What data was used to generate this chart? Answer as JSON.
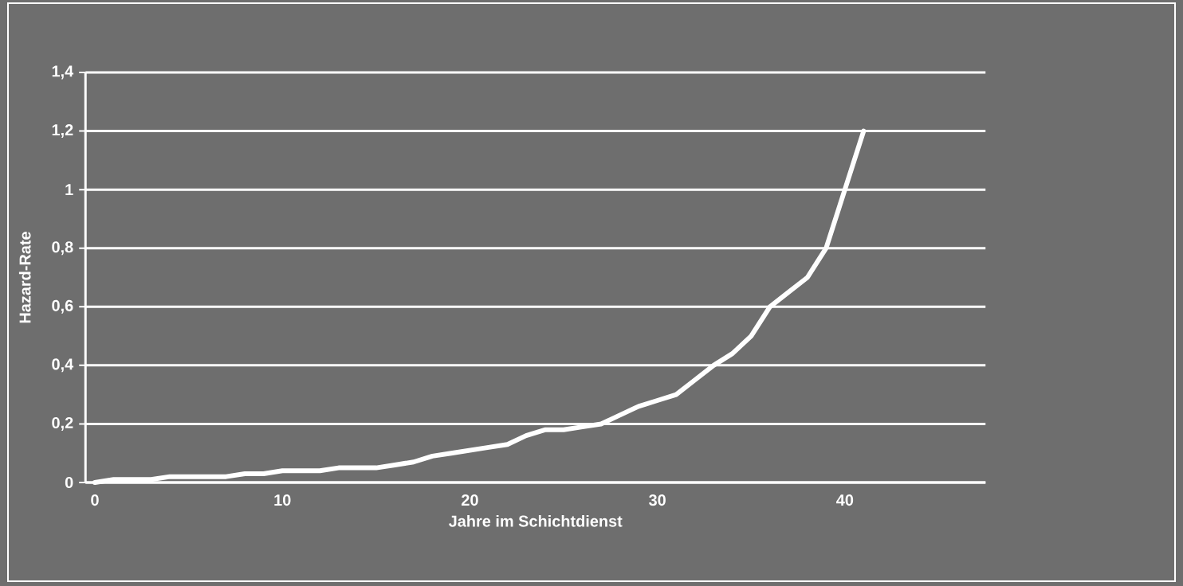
{
  "chart_data": {
    "type": "line",
    "xlabel": "Jahre im Schichtdienst",
    "ylabel": "Hazard-Rate",
    "categories": [
      "0",
      null,
      null,
      null,
      null,
      null,
      null,
      null,
      null,
      null,
      "10",
      null,
      null,
      null,
      null,
      null,
      null,
      null,
      null,
      null,
      "20",
      null,
      null,
      null,
      null,
      null,
      null,
      null,
      null,
      null,
      "30",
      null,
      null,
      null,
      null,
      null,
      null,
      null,
      null,
      null,
      "40",
      null,
      null,
      null,
      null,
      null,
      null,
      null
    ],
    "values": [
      0,
      0.01,
      0.01,
      0.01,
      0.02,
      0.02,
      0.02,
      0.02,
      0.03,
      0.03,
      0.04,
      0.04,
      0.04,
      0.05,
      0.05,
      0.05,
      0.06,
      0.07,
      0.09,
      0.1,
      0.11,
      0.12,
      0.13,
      0.16,
      0.18,
      0.18,
      0.19,
      0.2,
      0.23,
      0.26,
      0.28,
      0.3,
      0.35,
      0.4,
      0.44,
      0.5,
      0.6,
      0.65,
      0.7,
      0.8,
      1.0,
      1.2,
      null,
      null,
      null,
      null,
      null,
      null
    ],
    "color": "#ffffff",
    "ylim": [
      0,
      1.4
    ],
    "yticks": [
      0,
      {
        "value": 0.2,
        "label": "0,2"
      },
      {
        "value": 0.4,
        "label": "0,4"
      },
      {
        "value": 0.6,
        "label": "0,6"
      },
      {
        "value": 0.8,
        "label": "0,8"
      },
      1,
      {
        "value": 1.2,
        "label": "1,2"
      },
      {
        "value": 1.4,
        "label": "1,4"
      }
    ],
    "grid": "y"
  }
}
